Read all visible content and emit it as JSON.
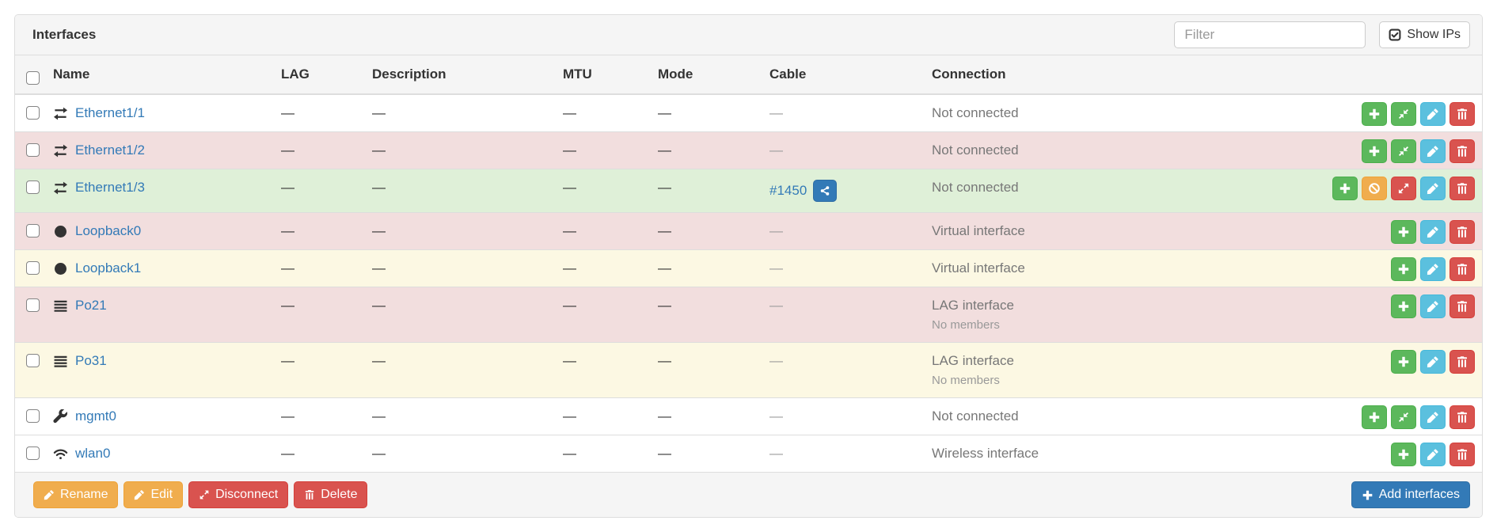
{
  "panel": {
    "title": "Interfaces"
  },
  "toolbar": {
    "filter_placeholder": "Filter",
    "show_ips_label": "Show IPs",
    "show_ips_icon": "check-square-icon"
  },
  "table": {
    "columns": [
      "Name",
      "LAG",
      "Description",
      "MTU",
      "Mode",
      "Cable",
      "Connection"
    ],
    "action_buttons": {
      "add": {
        "icon": "plus-icon",
        "style": "success"
      },
      "connect": {
        "icon": "compress-arrows-icon",
        "style": "success"
      },
      "ban": {
        "icon": "ban-icon",
        "style": "warning"
      },
      "disconnect": {
        "icon": "expand-arrows-icon",
        "style": "danger"
      },
      "edit": {
        "icon": "pencil-icon",
        "style": "info"
      },
      "delete": {
        "icon": "trash-icon",
        "style": "danger"
      }
    },
    "rows": [
      {
        "name": "Ethernet1/1",
        "icon": "exchange-icon",
        "lag": "—",
        "description": "—",
        "mtu": "—",
        "mode": "—",
        "cable": "—",
        "connection": "Not connected",
        "style": "default",
        "actions": [
          "add",
          "connect",
          "edit",
          "delete"
        ]
      },
      {
        "name": "Ethernet1/2",
        "icon": "exchange-icon",
        "lag": "—",
        "description": "—",
        "mtu": "—",
        "mode": "—",
        "cable": "—",
        "connection": "Not connected",
        "style": "danger",
        "actions": [
          "add",
          "connect",
          "edit",
          "delete"
        ]
      },
      {
        "name": "Ethernet1/3",
        "icon": "exchange-icon",
        "lag": "—",
        "description": "—",
        "mtu": "—",
        "mode": "—",
        "cable": "#1450",
        "cable_trace_button": true,
        "connection": "Not connected",
        "style": "success",
        "actions": [
          "add",
          "ban",
          "disconnect",
          "edit",
          "delete"
        ]
      },
      {
        "name": "Loopback0",
        "icon": "circle-icon",
        "lag": "—",
        "description": "—",
        "mtu": "—",
        "mode": "—",
        "cable": "—",
        "connection": "Virtual interface",
        "style": "danger",
        "actions": [
          "add",
          "edit",
          "delete"
        ]
      },
      {
        "name": "Loopback1",
        "icon": "circle-icon",
        "lag": "—",
        "description": "—",
        "mtu": "—",
        "mode": "—",
        "cable": "—",
        "connection": "Virtual interface",
        "style": "warning",
        "actions": [
          "add",
          "edit",
          "delete"
        ]
      },
      {
        "name": "Po21",
        "icon": "align-justify-icon",
        "lag": "—",
        "description": "—",
        "mtu": "—",
        "mode": "—",
        "cable": "—",
        "connection": "LAG interface",
        "connection_note": "No members",
        "style": "danger",
        "actions": [
          "add",
          "edit",
          "delete"
        ]
      },
      {
        "name": "Po31",
        "icon": "align-justify-icon",
        "lag": "—",
        "description": "—",
        "mtu": "—",
        "mode": "—",
        "cable": "—",
        "connection": "LAG interface",
        "connection_note": "No members",
        "style": "warning",
        "actions": [
          "add",
          "edit",
          "delete"
        ]
      },
      {
        "name": "mgmt0",
        "icon": "wrench-icon",
        "lag": "—",
        "description": "—",
        "mtu": "—",
        "mode": "—",
        "cable": "—",
        "connection": "Not connected",
        "style": "default",
        "actions": [
          "add",
          "connect",
          "edit",
          "delete"
        ]
      },
      {
        "name": "wlan0",
        "icon": "wifi-icon",
        "lag": "—",
        "description": "—",
        "mtu": "—",
        "mode": "—",
        "cable": "—",
        "connection": "Wireless interface",
        "style": "default",
        "actions": [
          "add",
          "edit",
          "delete"
        ]
      }
    ]
  },
  "footer": {
    "buttons": [
      {
        "label": "Rename",
        "icon": "pencil-icon",
        "style": "warning"
      },
      {
        "label": "Edit",
        "icon": "pencil-icon",
        "style": "warning"
      },
      {
        "label": "Disconnect",
        "icon": "expand-arrows-icon",
        "style": "danger"
      },
      {
        "label": "Delete",
        "icon": "trash-icon",
        "style": "danger"
      }
    ],
    "add_interfaces_label": "Add interfaces",
    "add_interfaces_icon": "plus-icon"
  },
  "colors": {
    "primary": "#337ab7",
    "success": "#5cb85c",
    "info": "#5bc0de",
    "warning": "#f0ad4e",
    "danger": "#d9534f",
    "link": "#337ab7",
    "row_danger_bg": "#f2dede",
    "row_success_bg": "#dff0d8",
    "row_warning_bg": "#fcf8e3",
    "panel_heading_bg": "#f5f5f5"
  }
}
